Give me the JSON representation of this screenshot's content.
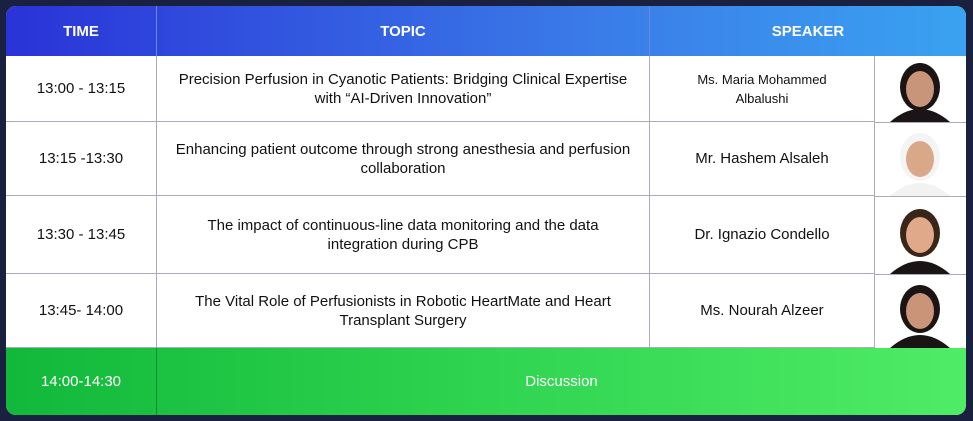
{
  "header": {
    "columns": [
      "TIME",
      "TOPIC",
      "SPEAKER"
    ]
  },
  "table": {
    "rows": [
      [
        "13:00 - 13:15",
        "Precision Perfusion in Cyanotic Patients: Bridging Clinical Expertise with “AI-Driven Innovation”",
        "Ms. Maria Mohammed Albalushi"
      ],
      [
        "13:15 -13:30",
        "Enhancing patient outcome through strong anesthesia and perfusion collaboration",
        "Mr. Hashem Alsaleh"
      ],
      [
        "13:30 - 13:45",
        "The impact of continuous-line data monitoring and the data integration during CPB",
        "Dr. Ignazio Condello"
      ],
      [
        "13:45- 14:00",
        "The Vital Role of Perfusionists in Robotic HeartMate and Heart Transplant Surgery",
        "Ms. Nourah Alzeer"
      ]
    ]
  },
  "discussion": {
    "time": "14:00-14:30",
    "label": "Discussion"
  }
}
